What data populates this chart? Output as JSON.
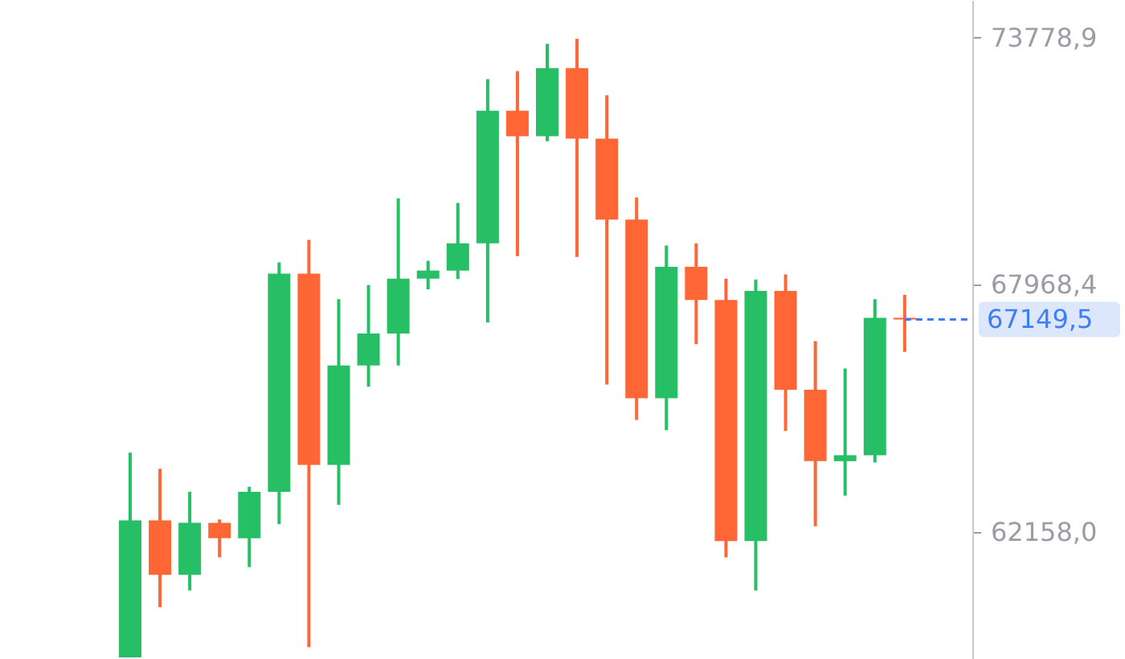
{
  "chart_data": {
    "type": "candlestick",
    "categories": [
      null,
      null,
      null,
      null,
      null,
      null,
      null,
      null,
      null,
      null,
      null,
      null,
      null,
      null,
      null,
      null,
      null,
      null,
      null,
      null,
      null,
      null,
      null,
      null,
      null,
      null,
      null
    ],
    "ohlc": [
      [
        59210,
        64020,
        59210,
        62430
      ],
      [
        62430,
        63640,
        60390,
        61150
      ],
      [
        61150,
        63100,
        60780,
        62370
      ],
      [
        62370,
        62450,
        61560,
        62010
      ],
      [
        62010,
        63220,
        61330,
        63100
      ],
      [
        63100,
        68490,
        62340,
        68230
      ],
      [
        68230,
        69020,
        59450,
        63730
      ],
      [
        63730,
        67630,
        62790,
        66070
      ],
      [
        66070,
        67960,
        65570,
        66820
      ],
      [
        66820,
        70000,
        66070,
        68110
      ],
      [
        68110,
        68530,
        67860,
        68300
      ],
      [
        68300,
        69890,
        68100,
        68940
      ],
      [
        68940,
        72800,
        67080,
        72060
      ],
      [
        72060,
        72990,
        68640,
        71460
      ],
      [
        71460,
        73630,
        71340,
        73060
      ],
      [
        73060,
        73750,
        68620,
        71400
      ],
      [
        71400,
        72420,
        65620,
        69500
      ],
      [
        69500,
        70020,
        64790,
        65300
      ],
      [
        65300,
        68890,
        64550,
        68390
      ],
      [
        68390,
        68940,
        66570,
        67610
      ],
      [
        67610,
        68110,
        61560,
        61940
      ],
      [
        61940,
        68090,
        60780,
        67820
      ],
      [
        67820,
        68210,
        64530,
        65500
      ],
      [
        65500,
        66640,
        62290,
        63820
      ],
      [
        63820,
        66000,
        63010,
        63960
      ],
      [
        63960,
        67630,
        63790,
        67190
      ],
      [
        67190,
        67730,
        66390,
        67149.5
      ]
    ],
    "colors": [
      "#26bf66",
      "#ff6636",
      "#26bf66",
      "#ff6636",
      "#26bf66",
      "#26bf66",
      "#ff6636",
      "#26bf66",
      "#26bf66",
      "#26bf66",
      "#26bf66",
      "#26bf66",
      "#26bf66",
      "#ff6636",
      "#26bf66",
      "#ff6636",
      "#ff6636",
      "#ff6636",
      "#26bf66",
      "#ff6636",
      "#ff6636",
      "#26bf66",
      "#ff6636",
      "#ff6636",
      "#26bf66",
      "#26bf66",
      "#ff6636"
    ],
    "ylim": [
      59170,
      74660
    ],
    "yticks": [
      {
        "value": 62158.0,
        "label": "62158,0"
      },
      {
        "value": 67968.4,
        "label": "67968,4"
      },
      {
        "value": 73778.9,
        "label": "73778,9"
      }
    ],
    "tick_labels": "y",
    "grid": false,
    "ref_lines": [
      {
        "axis": "y",
        "value": 67149.5,
        "label": "67149,5",
        "color": "#3d7ef5",
        "line_style": "dashed"
      }
    ]
  }
}
